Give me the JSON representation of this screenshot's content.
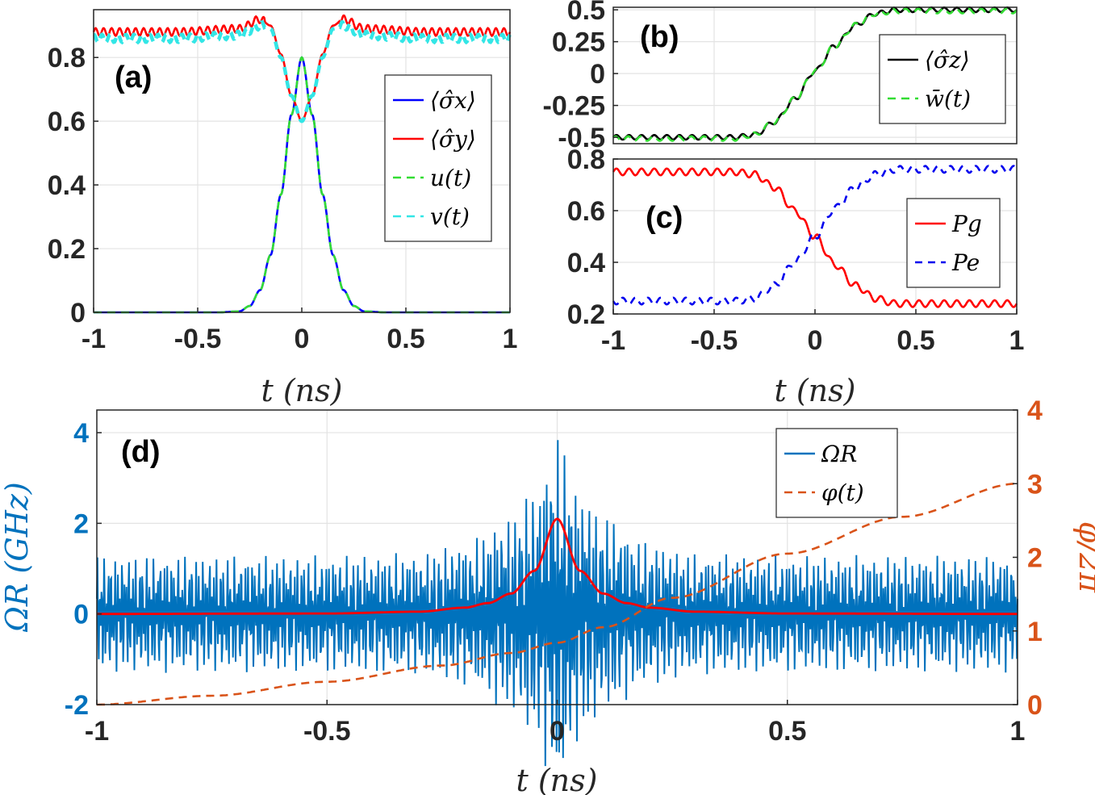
{
  "colors": {
    "sx": "#0000FF",
    "sy": "#FF0000",
    "u": "#33DD33",
    "v": "#33E6E6",
    "sz": "#000000",
    "w": "#33DD33",
    "pg": "#FF0000",
    "pe": "#0000EE",
    "omega": "#0072BD",
    "phi": "#D95319",
    "envelope": "#FF0000"
  },
  "chart_data": [
    {
      "panel": "(a)",
      "type": "line",
      "xlabel": "t (ns)",
      "ylabel": "",
      "xlim": [
        -1,
        1
      ],
      "ylim": [
        0,
        0.95
      ],
      "xticks": [
        -1,
        -0.5,
        0,
        0.5,
        1
      ],
      "xtick_labels": [
        "-1",
        "-0.5",
        "0",
        "0.5",
        "1"
      ],
      "yticks": [
        0,
        0.2,
        0.4,
        0.6,
        0.8
      ],
      "ytick_labels": [
        "0",
        "0.2",
        "0.4",
        "0.6",
        "0.8"
      ],
      "grid": true,
      "legend_position": "right",
      "series": [
        {
          "name": "⟨σ̂x⟩",
          "x": [
            -1,
            -0.4,
            -0.3,
            -0.25,
            -0.2,
            -0.15,
            -0.1,
            -0.05,
            0,
            0.05,
            0.1,
            0.15,
            0.2,
            0.25,
            0.3,
            0.4,
            1
          ],
          "y": [
            0,
            0,
            0.003,
            0.02,
            0.07,
            0.18,
            0.37,
            0.62,
            0.8,
            0.62,
            0.37,
            0.18,
            0.07,
            0.02,
            0.003,
            0,
            0
          ]
        },
        {
          "name": "⟨σ̂y⟩",
          "x": [
            -1,
            -0.6,
            -0.3,
            -0.2,
            -0.15,
            -0.1,
            -0.05,
            0,
            0.05,
            0.1,
            0.15,
            0.2,
            0.3,
            0.6,
            1
          ],
          "y": [
            0.88,
            0.88,
            0.89,
            0.92,
            0.9,
            0.81,
            0.68,
            0.6,
            0.68,
            0.81,
            0.9,
            0.92,
            0.89,
            0.88,
            0.88
          ]
        },
        {
          "name": "u(t)",
          "x": [
            -1,
            -0.4,
            -0.3,
            -0.25,
            -0.2,
            -0.15,
            -0.1,
            -0.05,
            0,
            0.05,
            0.1,
            0.15,
            0.2,
            0.25,
            0.3,
            0.4,
            1
          ],
          "y": [
            0,
            0,
            0.003,
            0.02,
            0.07,
            0.18,
            0.37,
            0.62,
            0.8,
            0.62,
            0.37,
            0.18,
            0.07,
            0.02,
            0.003,
            0,
            0
          ]
        },
        {
          "name": "v(t)",
          "x": [
            -1,
            -0.6,
            -0.3,
            -0.2,
            -0.15,
            -0.1,
            -0.05,
            0,
            0.05,
            0.1,
            0.15,
            0.2,
            0.3,
            0.6,
            1
          ],
          "y": [
            0.86,
            0.86,
            0.87,
            0.9,
            0.89,
            0.8,
            0.68,
            0.6,
            0.68,
            0.8,
            0.89,
            0.9,
            0.87,
            0.86,
            0.86
          ]
        }
      ]
    },
    {
      "panel": "(b)",
      "type": "line",
      "xlabel": "",
      "ylabel": "",
      "xlim": [
        -1,
        1
      ],
      "ylim": [
        -0.55,
        0.52
      ],
      "yticks": [
        -0.5,
        -0.25,
        0,
        0.25,
        0.5
      ],
      "ytick_labels": [
        "-0.5",
        "-0.25",
        "0",
        "0.25",
        "0.5"
      ],
      "grid": true,
      "legend_position": "right",
      "series": [
        {
          "name": "⟨σ̂z⟩",
          "x": [
            -1,
            -0.4,
            -0.3,
            -0.2,
            -0.1,
            0,
            0.1,
            0.2,
            0.3,
            0.4,
            1
          ],
          "y": [
            -0.5,
            -0.5,
            -0.48,
            -0.38,
            -0.2,
            0.02,
            0.22,
            0.38,
            0.47,
            0.5,
            0.5
          ]
        },
        {
          "name": "w̄(t)",
          "x": [
            -1,
            -0.4,
            -0.3,
            -0.2,
            -0.1,
            0,
            0.1,
            0.2,
            0.3,
            0.4,
            1
          ],
          "y": [
            -0.51,
            -0.51,
            -0.48,
            -0.38,
            -0.2,
            0.02,
            0.22,
            0.38,
            0.47,
            0.49,
            0.49
          ]
        }
      ]
    },
    {
      "panel": "(c)",
      "type": "line",
      "xlabel": "t (ns)",
      "ylabel": "",
      "xlim": [
        -1,
        1
      ],
      "ylim": [
        0.2,
        0.8
      ],
      "xticks": [
        -1,
        -0.5,
        0,
        0.5,
        1
      ],
      "xtick_labels": [
        "-1",
        "-0.5",
        "0",
        "0.5",
        "1"
      ],
      "yticks": [
        0.2,
        0.4,
        0.6,
        0.8
      ],
      "ytick_labels": [
        "0.2",
        "0.4",
        "0.6",
        "0.8"
      ],
      "grid": true,
      "legend_position": "right",
      "series": [
        {
          "name": "Pg",
          "x": [
            -1,
            -0.4,
            -0.3,
            -0.2,
            -0.1,
            0,
            0.1,
            0.2,
            0.3,
            0.4,
            1
          ],
          "y": [
            0.75,
            0.75,
            0.74,
            0.69,
            0.6,
            0.5,
            0.39,
            0.31,
            0.26,
            0.24,
            0.24
          ]
        },
        {
          "name": "Pe",
          "x": [
            -1,
            -0.4,
            -0.3,
            -0.2,
            -0.1,
            0,
            0.1,
            0.2,
            0.3,
            0.4,
            1
          ],
          "y": [
            0.25,
            0.25,
            0.26,
            0.31,
            0.4,
            0.5,
            0.61,
            0.69,
            0.74,
            0.76,
            0.76
          ]
        }
      ]
    },
    {
      "panel": "(d)",
      "type": "line",
      "xlabel": "t (ns)",
      "ylabel": "ΩR (GHz)",
      "ylabel_right": "φ/2π",
      "xlim": [
        -1,
        1
      ],
      "ylim": [
        -2,
        4.5
      ],
      "ylim_right": [
        0,
        4
      ],
      "xticks": [
        -1,
        -0.5,
        0,
        0.5,
        1
      ],
      "xtick_labels": [
        "-1",
        "-0.5",
        "0",
        "0.5",
        "1"
      ],
      "yticks": [
        -2,
        0,
        2,
        4
      ],
      "ytick_labels": [
        "-2",
        "0",
        "2",
        "4"
      ],
      "yticks_right": [
        0,
        1,
        2,
        3,
        4
      ],
      "ytick_labels_right": [
        "0",
        "1",
        "2",
        "3",
        "4"
      ],
      "grid": true,
      "legend_position": "top-right",
      "series": [
        {
          "name": "ΩR",
          "x": [
            -1,
            -0.5,
            -0.3,
            -0.2,
            -0.1,
            -0.05,
            0,
            0.05,
            0.1,
            0.2,
            0.3,
            0.5,
            1
          ],
          "y_envelope": [
            1.3,
            1.3,
            1.35,
            1.6,
            2.2,
            2.8,
            4.0,
            2.8,
            2.2,
            1.6,
            1.35,
            1.3,
            1.3
          ]
        },
        {
          "name": "φ(t)",
          "axis": "right",
          "x": [
            -1,
            -0.75,
            -0.5,
            -0.25,
            -0.1,
            0,
            0.1,
            0.25,
            0.5,
            0.75,
            1
          ],
          "y": [
            0,
            0.12,
            0.31,
            0.53,
            0.7,
            0.84,
            1.05,
            1.45,
            2.05,
            2.55,
            3.0
          ]
        },
        {
          "name": "",
          "x": [
            -1,
            -0.5,
            -0.3,
            -0.2,
            -0.15,
            -0.1,
            -0.05,
            0,
            0.05,
            0.1,
            0.15,
            0.2,
            0.3,
            0.5,
            1
          ],
          "y": [
            0,
            0.01,
            0.05,
            0.14,
            0.24,
            0.45,
            0.95,
            2.1,
            0.95,
            0.45,
            0.24,
            0.14,
            0.05,
            0.01,
            0
          ]
        }
      ]
    }
  ]
}
